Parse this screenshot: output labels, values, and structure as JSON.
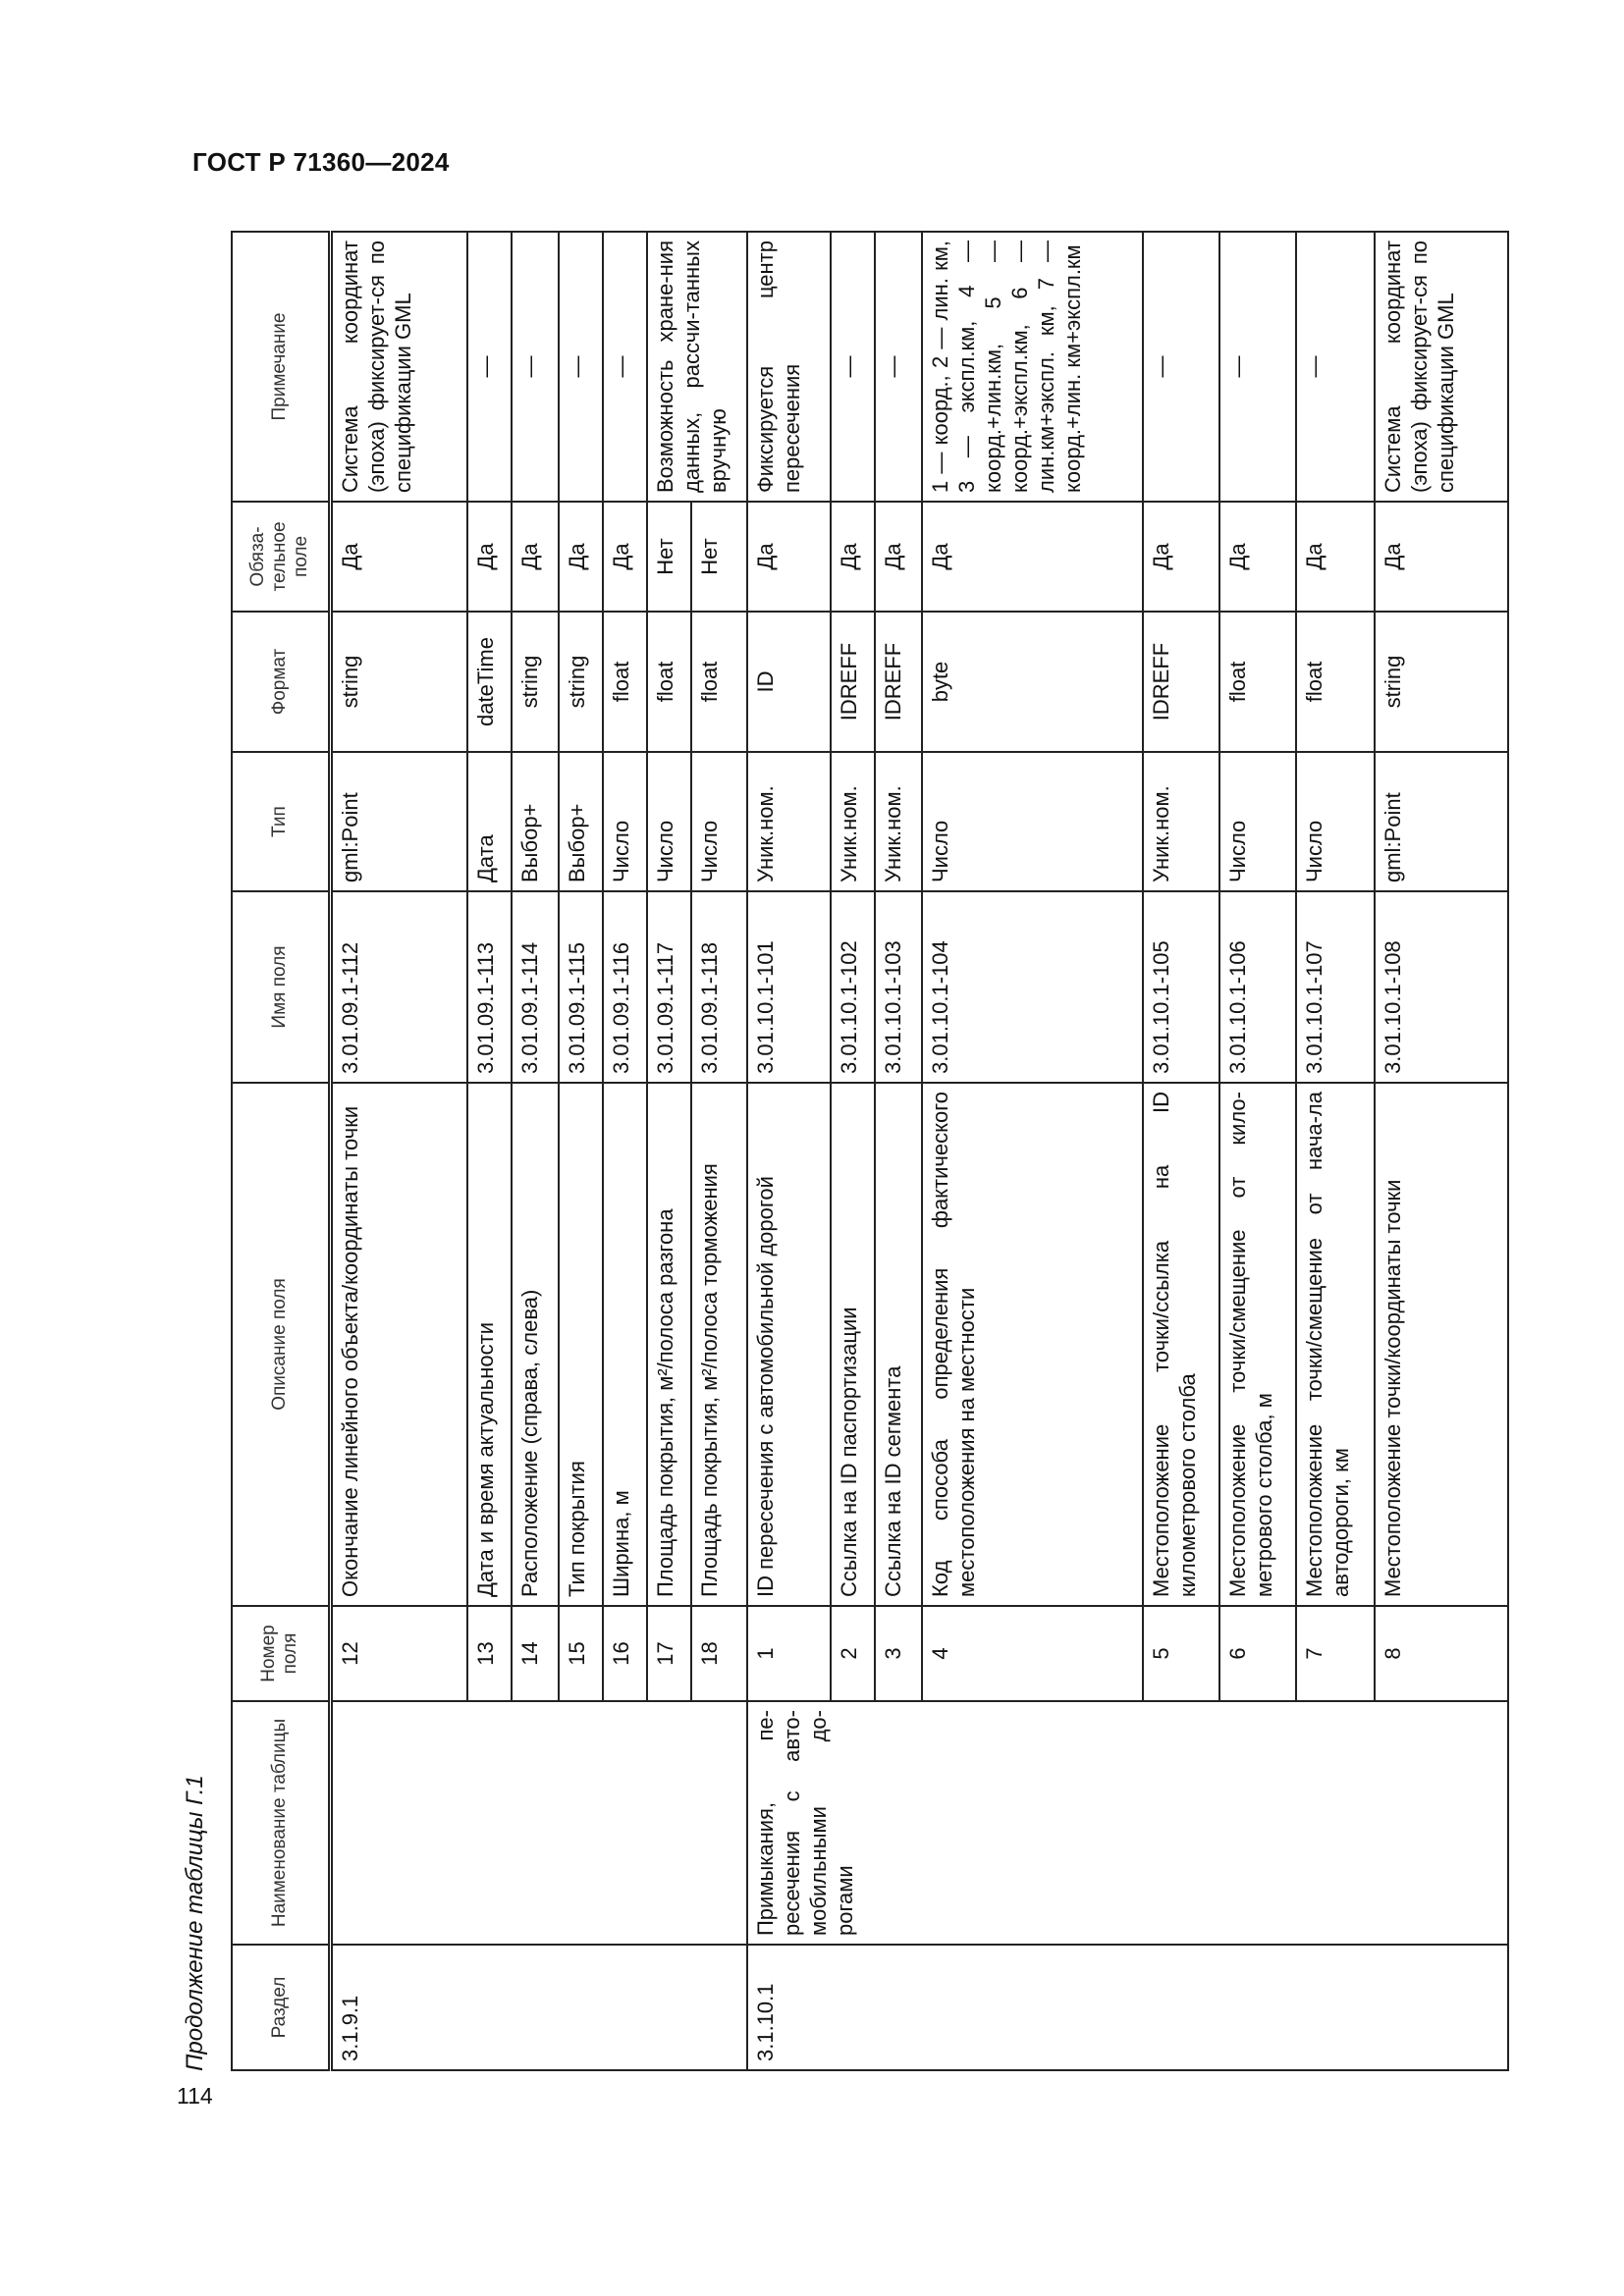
{
  "header": {
    "doc_code": "ГОСТ Р 71360—2024"
  },
  "page_number": "114",
  "caption": "Продолжение таблицы Г.1",
  "table": {
    "columns": [
      "Раздел",
      "Наименование таблицы",
      "Номер поля",
      "Описание поля",
      "Имя поля",
      "Тип",
      "Формат",
      "Обяза-тельное поле",
      "Примечание"
    ],
    "groups": [
      {
        "section": "3.1.9.1",
        "name": "",
        "rows": [
          {
            "num": "12",
            "desc": "Окончание линейного объекта/координаты точки",
            "field": "3.01.09.1-112",
            "type": "gml:Point",
            "format": "string",
            "req": "Да",
            "note": "Система координат (эпоха) фиксирует-ся по спецификации GML"
          },
          {
            "num": "13",
            "desc": "Дата и время актуальности",
            "field": "3.01.09.1-113",
            "type": "Дата",
            "format": "dateTime",
            "req": "Да",
            "note": "—"
          },
          {
            "num": "14",
            "desc": "Расположение (справа, слева)",
            "field": "3.01.09.1-114",
            "type": "Выбор+",
            "format": "string",
            "req": "Да",
            "note": "—"
          },
          {
            "num": "15",
            "desc": "Тип покрытия",
            "field": "3.01.09.1-115",
            "type": "Выбор+",
            "format": "string",
            "req": "Да",
            "note": "—"
          },
          {
            "num": "16",
            "desc": "Ширина, м",
            "field": "3.01.09.1-116",
            "type": "Число",
            "format": "float",
            "req": "Да",
            "note": "—"
          },
          {
            "num": "17",
            "desc": "Площадь покрытия, м²/полоса разгона",
            "field": "3.01.09.1-117",
            "type": "Число",
            "format": "float",
            "req": "Нет",
            "note": "Возможность хране-ния данных, рассчи-танных вручную"
          },
          {
            "num": "18",
            "desc": "Площадь покрытия, м²/полоса торможения",
            "field": "3.01.09.1-118",
            "type": "Число",
            "format": "float",
            "req": "Нет"
          }
        ]
      },
      {
        "section": "3.1.10.1",
        "name": "Примыкания, пе-ресечения с авто-мобильными до-рогами",
        "rows": [
          {
            "num": "1",
            "desc": "ID пересечения с автомобильной дорогой",
            "field": "3.01.10.1-101",
            "type": "Уник.ном.",
            "format": "ID",
            "req": "Да",
            "note": "Фиксируется центр пересечения"
          },
          {
            "num": "2",
            "desc": "Ссылка на ID паспортизации",
            "field": "3.01.10.1-102",
            "type": "Уник.ном.",
            "format": "IDREFF",
            "req": "Да",
            "note": "—"
          },
          {
            "num": "3",
            "desc": "Ссылка на ID сегмента",
            "field": "3.01.10.1-103",
            "type": "Уник.ном.",
            "format": "IDREFF",
            "req": "Да",
            "note": "—"
          },
          {
            "num": "4",
            "desc": "Код способа определения фактического местоположения на местности",
            "field": "3.01.10.1-104",
            "type": "Число",
            "format": "byte",
            "req": "Да",
            "note": "1 — коорд., 2 — лин. км, 3 — экспл.км, 4 — коорд.+лин.км, 5 —коорд.+экспл.км, 6 — лин.км+экспл. км, 7 — коорд.+лин. км+экспл.км"
          },
          {
            "num": "5",
            "desc": "Местоположение точки/ссылка на ID километрового столба",
            "field": "3.01.10.1-105",
            "type": "Уник.ном.",
            "format": "IDREFF",
            "req": "Да",
            "note": "—"
          },
          {
            "num": "6",
            "desc": "Местоположение точки/смещение от кило-метрового столба, м",
            "field": "3.01.10.1-106",
            "type": "Число",
            "format": "float",
            "req": "Да",
            "note": "—"
          },
          {
            "num": "7",
            "desc": "Местоположение точки/смещение от нача-ла автодороги, км",
            "field": "3.01.10.1-107",
            "type": "Число",
            "format": "float",
            "req": "Да",
            "note": "—"
          },
          {
            "num": "8",
            "desc": "Местоположение точки/координаты точки",
            "field": "3.01.10.1-108",
            "type": "gml:Point",
            "format": "string",
            "req": "Да",
            "note": "Система координат (эпоха) фиксирует-ся по спецификации GML"
          }
        ]
      }
    ]
  }
}
